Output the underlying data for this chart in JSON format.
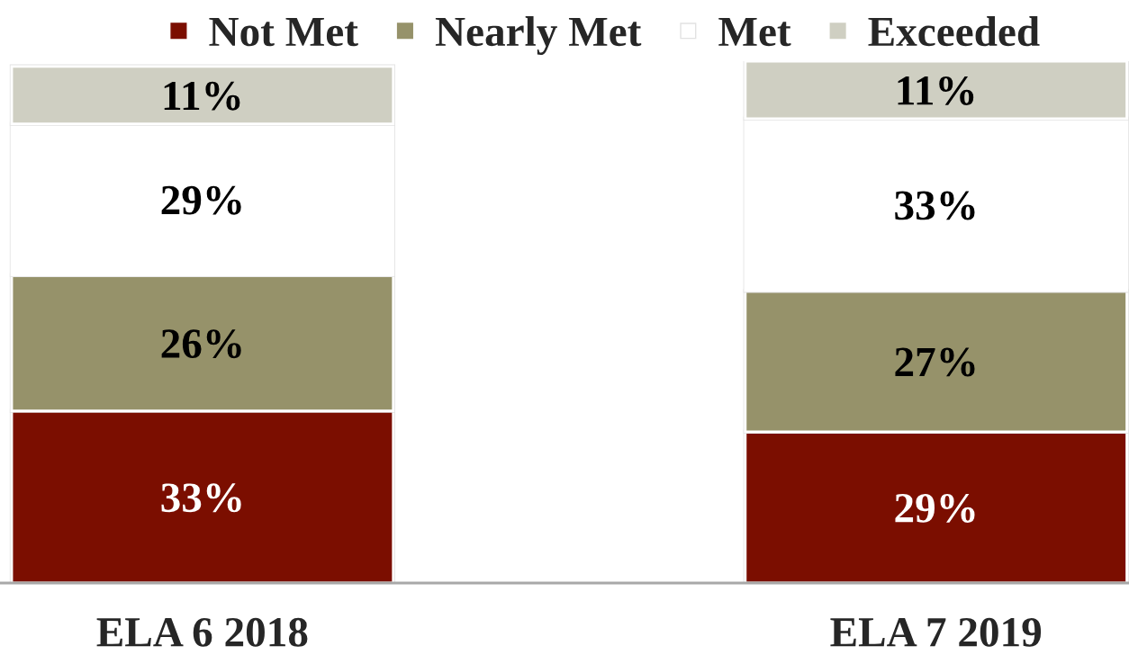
{
  "chart_data": {
    "type": "bar",
    "stacked": true,
    "legend": "top",
    "categories": [
      "ELA 6 2018",
      "ELA 7 2019"
    ],
    "series": [
      {
        "name": "Not Met",
        "color": "#7b0e00",
        "values": [
          33,
          29
        ],
        "value_labels": [
          "33%",
          "29%"
        ]
      },
      {
        "name": "Nearly Met",
        "color": "#96926a",
        "values": [
          26,
          27
        ],
        "value_labels": [
          "26%",
          "27%"
        ]
      },
      {
        "name": "Met",
        "color": "#ffffff",
        "values": [
          29,
          33
        ],
        "value_labels": [
          "29%",
          "33%"
        ]
      },
      {
        "name": "Exceeded",
        "color": "#cfcfc2",
        "values": [
          11,
          11
        ],
        "value_labels": [
          "11%",
          "11%"
        ]
      }
    ]
  }
}
